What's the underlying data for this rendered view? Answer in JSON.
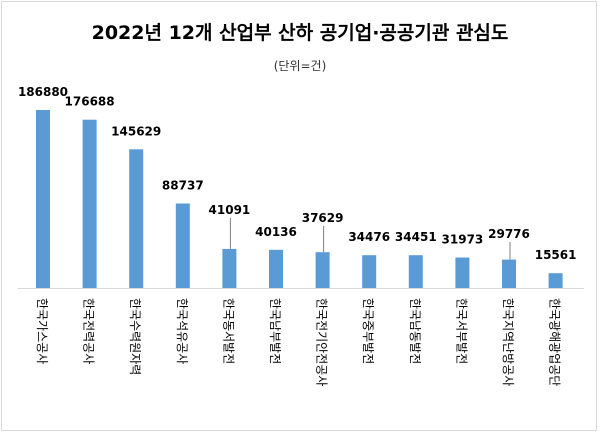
{
  "chart_data": {
    "type": "bar",
    "title": "2022년 12개 산업부 산하 공기업·공공기관 관심도",
    "subtitle": "(단위=건)",
    "categories": [
      "한국가스공사",
      "한국전력공사",
      "한국수력원자력",
      "한국석유공사",
      "한국동서발전",
      "한국남부발전",
      "한국전기안전공사",
      "한국중부발전",
      "한국남동발전",
      "한국서부발전",
      "한국지역난방공사",
      "한국광해광업공단"
    ],
    "values": [
      186880,
      176688,
      145629,
      88737,
      41091,
      40136,
      37629,
      34476,
      34451,
      31973,
      29776,
      15561
    ],
    "labels": [
      "186880",
      "176688",
      "145629",
      "88737",
      "41091",
      "40136",
      "37629",
      "34476",
      "34451",
      "31973",
      "29776",
      "15561"
    ],
    "ylim": [
      0,
      186880
    ],
    "grid": false,
    "legend": "none",
    "bar_color": "#5b9bd5",
    "axis_color": "#d9d9d9"
  }
}
